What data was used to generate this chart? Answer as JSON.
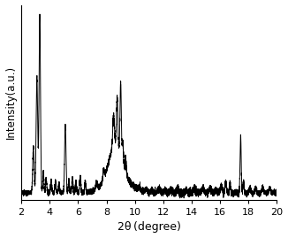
{
  "title": "",
  "xlabel": "2θ (degree)",
  "ylabel": "Intensity(a.u.)",
  "xlim": [
    2,
    20
  ],
  "ylim": [
    0,
    1.05
  ],
  "xticks": [
    2,
    4,
    6,
    8,
    10,
    12,
    14,
    16,
    18,
    20
  ],
  "line_color": "#000000",
  "line_width": 0.7,
  "background_color": "#ffffff",
  "figsize": [
    3.26,
    2.69
  ],
  "dpi": 100
}
